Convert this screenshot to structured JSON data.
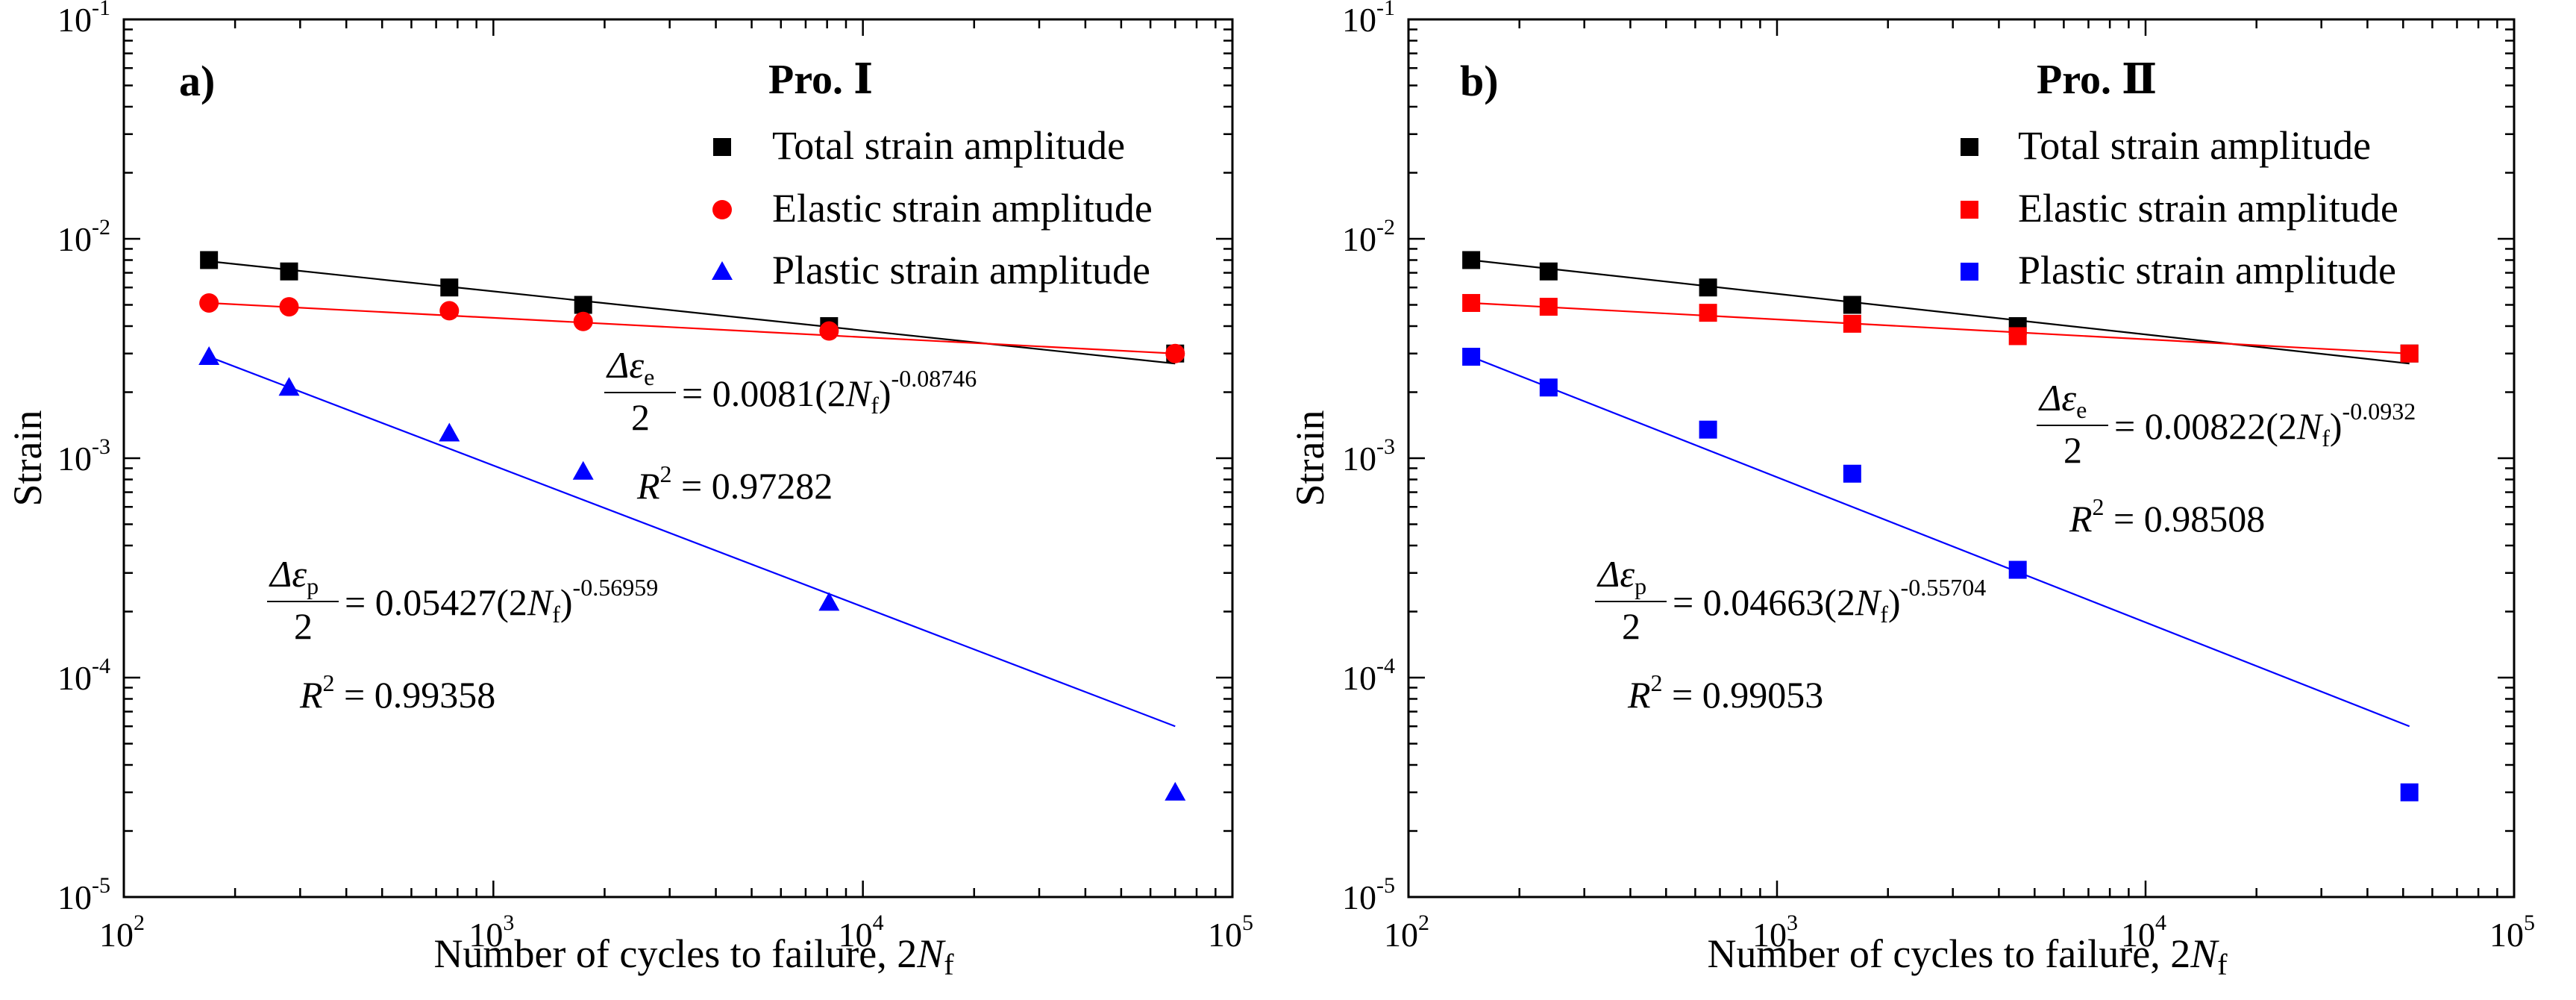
{
  "chart_data": [
    {
      "type": "scatter",
      "panel_label": "a)",
      "legend_title": "Pro. Ⅰ",
      "xlabel": "Number of cycles to failure, 2Nf",
      "ylabel": "Strain",
      "xscale": "log",
      "yscale": "log",
      "xlim": [
        100,
        100000
      ],
      "ylim": [
        1e-05,
        0.1
      ],
      "x_ticks": [
        "10^2",
        "10^3",
        "10^4",
        "10^5"
      ],
      "y_ticks": [
        "10^-5",
        "10^-4",
        "10^-3",
        "10^-2",
        "10^-1"
      ],
      "legend_position": "top-right",
      "series": [
        {
          "name": "Total strain amplitude",
          "marker": "square",
          "color": "#000000",
          "x": [
            170,
            280,
            760,
            1750,
            8100,
            70000
          ],
          "y": [
            0.008,
            0.0071,
            0.006,
            0.005,
            0.004,
            0.003
          ],
          "fit": {
            "x": [
              170,
              70000
            ],
            "y": [
              0.0079,
              0.0027
            ]
          }
        },
        {
          "name": "Elastic strain amplitude",
          "marker": "circle",
          "color": "#ff0000",
          "x": [
            170,
            280,
            760,
            1750,
            8100,
            70000
          ],
          "y": [
            0.0051,
            0.0049,
            0.0047,
            0.0042,
            0.0038,
            0.003
          ],
          "fit": {
            "x": [
              170,
              70000
            ],
            "y": [
              0.0051,
              0.003
            ]
          }
        },
        {
          "name": "Plastic strain amplitude",
          "marker": "triangle",
          "color": "#0000ff",
          "x": [
            170,
            280,
            760,
            1750,
            8100,
            70000
          ],
          "y": [
            0.0029,
            0.0021,
            0.0013,
            0.00087,
            0.00022,
            3e-05
          ],
          "fit": {
            "x": [
              170,
              70000
            ],
            "y": [
              0.0029,
              6e-05
            ]
          }
        }
      ],
      "annotations": [
        {
          "id": "elastic",
          "lhs_num": "Δε",
          "lhs_sub": "e",
          "lhs_den": "2",
          "coef": "= 0.0081",
          "base": "(2N",
          "base_sub": "f",
          "base_close": ")",
          "exp": "-0.08746",
          "r2_prefix": "R",
          "r2_exp": "2",
          "r2_value": "= 0.97282"
        },
        {
          "id": "plastic",
          "lhs_num": "Δε",
          "lhs_sub": "p",
          "lhs_den": "2",
          "coef": "= 0.05427",
          "base": "(2N",
          "base_sub": "f",
          "base_close": ")",
          "exp": "-0.56959",
          "r2_prefix": "R",
          "r2_exp": "2",
          "r2_value": "= 0.99358"
        }
      ]
    },
    {
      "type": "scatter",
      "panel_label": "b)",
      "legend_title": "Pro. Ⅱ",
      "xlabel": "Number of cycles to failure, 2Nf",
      "ylabel": "Strain",
      "xscale": "log",
      "yscale": "log",
      "xlim": [
        100,
        100000
      ],
      "ylim": [
        1e-05,
        0.1
      ],
      "x_ticks": [
        "10^2",
        "10^3",
        "10^4",
        "10^5"
      ],
      "y_ticks": [
        "10^-5",
        "10^-4",
        "10^-3",
        "10^-2",
        "10^-1"
      ],
      "legend_position": "top-right",
      "series": [
        {
          "name": "Total strain amplitude",
          "marker": "square",
          "color": "#000000",
          "x": [
            148,
            240,
            650,
            1600,
            4500,
            52000
          ],
          "y": [
            0.008,
            0.0071,
            0.006,
            0.005,
            0.004,
            0.003
          ],
          "fit": {
            "x": [
              148,
              52000
            ],
            "y": [
              0.008,
              0.0027
            ]
          }
        },
        {
          "name": "Elastic strain amplitude",
          "marker": "square",
          "color": "#ff0000",
          "x": [
            148,
            240,
            650,
            1600,
            4500,
            52000
          ],
          "y": [
            0.0051,
            0.0049,
            0.0046,
            0.0041,
            0.0036,
            0.003
          ],
          "fit": {
            "x": [
              148,
              52000
            ],
            "y": [
              0.0051,
              0.003
            ]
          }
        },
        {
          "name": "Plastic strain amplitude",
          "marker": "square",
          "color": "#0000ff",
          "x": [
            148,
            240,
            650,
            1600,
            4500,
            52000
          ],
          "y": [
            0.0029,
            0.0021,
            0.00135,
            0.00085,
            0.00031,
            3e-05
          ],
          "fit": {
            "x": [
              148,
              52000
            ],
            "y": [
              0.0029,
              6e-05
            ]
          }
        }
      ],
      "annotations": [
        {
          "id": "elastic",
          "lhs_num": "Δε",
          "lhs_sub": "e",
          "lhs_den": "2",
          "coef": "= 0.00822",
          "base": "(2N",
          "base_sub": "f",
          "base_close": ")",
          "exp": "-0.0932",
          "r2_prefix": "R",
          "r2_exp": "2",
          "r2_value": "= 0.98508"
        },
        {
          "id": "plastic",
          "lhs_num": "Δε",
          "lhs_sub": "p",
          "lhs_den": "2",
          "coef": "= 0.04663",
          "base": "(2N",
          "base_sub": "f",
          "base_close": ")",
          "exp": "-0.55704",
          "r2_prefix": "R",
          "r2_exp": "2",
          "r2_value": "= 0.99053"
        }
      ]
    }
  ]
}
